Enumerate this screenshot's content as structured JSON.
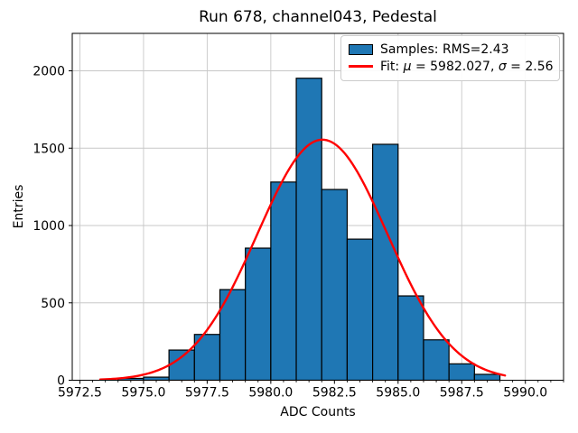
{
  "title": "Run 678, channel043, Pedestal",
  "x_axis_label": "ADC Counts",
  "y_axis_label": "Entries",
  "legend": {
    "samples_label": "Samples: RMS=2.43",
    "fit": {
      "prefix": "Fit: ",
      "mu_symbol": "μ",
      "mu_eq": " = 5982.027, ",
      "sigma_symbol": "σ",
      "sigma_eq": " = 2.56"
    }
  },
  "colors": {
    "bar_fill": "#1f77b4",
    "bar_edge": "#000000",
    "fit_line": "#ff0000",
    "grid": "#c7c7c7",
    "spine": "#000000",
    "tick_label": "#000000"
  },
  "chart_data": {
    "type": "bar",
    "subtype": "histogram-with-gaussian-fit",
    "title": "Run 678, channel043, Pedestal",
    "xlabel": "ADC Counts",
    "ylabel": "Entries",
    "bin_edges": [
      5974,
      5975,
      5976,
      5977,
      5978,
      5979,
      5980,
      5981,
      5982,
      5983,
      5984,
      5985,
      5986,
      5987,
      5988,
      5989
    ],
    "counts": [
      12,
      20,
      195,
      296,
      586,
      854,
      1281,
      1952,
      1233,
      912,
      1525,
      545,
      261,
      106,
      38
    ],
    "series": [
      {
        "name": "Samples: RMS=2.43",
        "type": "histogram",
        "rms": 2.43
      },
      {
        "name": "Fit: μ = 5982.027, σ = 2.56",
        "type": "gaussian",
        "mu": 5982.027,
        "sigma": 2.56,
        "peak": 1555
      }
    ],
    "fit_curve": {
      "mu": 5982.027,
      "sigma": 2.56,
      "peak": 1555,
      "x_start": 5973.3,
      "x_end": 5989.2
    },
    "xlim": [
      5972.2,
      5991.5
    ],
    "ylim": [
      0,
      2242
    ],
    "x_tick_values": [
      5972.5,
      5975.0,
      5977.5,
      5980.0,
      5982.5,
      5985.0,
      5987.5,
      5990.0
    ],
    "x_tick_labels": [
      "5972.5",
      "5975.0",
      "5977.5",
      "5980.0",
      "5982.5",
      "5985.0",
      "5987.5",
      "5990.0"
    ],
    "x_minor_tick_step": 0.5,
    "y_tick_values": [
      0,
      500,
      1000,
      1500,
      2000
    ],
    "y_tick_labels": [
      "0",
      "500",
      "1000",
      "1500",
      "2000"
    ],
    "grid": true,
    "legend_position": "upper right"
  }
}
